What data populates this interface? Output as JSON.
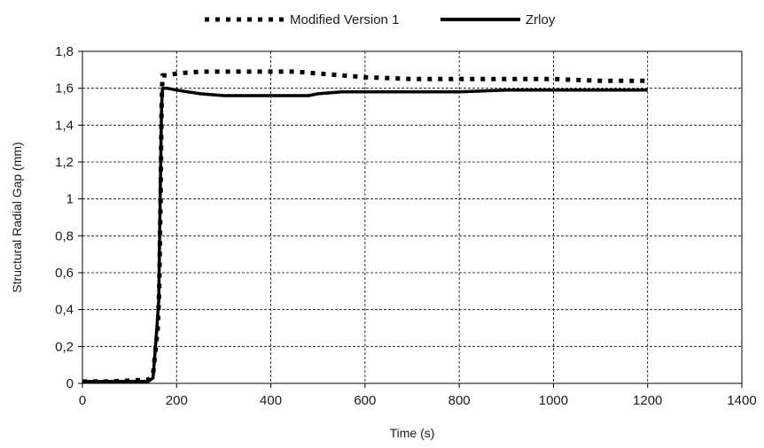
{
  "chart_data": {
    "type": "line",
    "title": "",
    "xlabel": "Time (s)",
    "ylabel": "Structural Radial  Gap (mm)",
    "xlim": [
      0,
      1400
    ],
    "ylim": [
      0,
      1.8
    ],
    "x_ticks": [
      0,
      200,
      400,
      600,
      800,
      1000,
      1200,
      1400
    ],
    "x_tick_labels": [
      "0",
      "200",
      "400",
      "600",
      "800",
      "1000",
      "1200",
      "1400"
    ],
    "y_ticks": [
      0,
      0.2,
      0.4,
      0.6,
      0.8,
      1.0,
      1.2,
      1.4,
      1.6,
      1.8
    ],
    "y_tick_labels": [
      "0",
      "0,2",
      "0,4",
      "0,6",
      "0,8",
      "1",
      "1,2",
      "1,4",
      "1,6",
      "1,8"
    ],
    "grid": true,
    "legend_position": "top-center",
    "series": [
      {
        "name": "Modified Version  1",
        "style": "dotted",
        "color": "#000000",
        "x": [
          0,
          50,
          100,
          140,
          150,
          160,
          163,
          166,
          168,
          170,
          180,
          200,
          250,
          300,
          400,
          450,
          500,
          550,
          600,
          700,
          800,
          900,
          1000,
          1100,
          1200
        ],
        "y": [
          0.01,
          0.01,
          0.015,
          0.02,
          0.05,
          0.3,
          0.5,
          1.0,
          1.5,
          1.67,
          1.67,
          1.68,
          1.69,
          1.69,
          1.69,
          1.69,
          1.68,
          1.67,
          1.66,
          1.65,
          1.65,
          1.65,
          1.65,
          1.64,
          1.64
        ]
      },
      {
        "name": "Zrloy",
        "style": "solid",
        "color": "#000000",
        "x": [
          0,
          50,
          100,
          140,
          150,
          158,
          162,
          165,
          168,
          170,
          180,
          200,
          250,
          300,
          400,
          480,
          500,
          550,
          600,
          700,
          800,
          900,
          1000,
          1100,
          1200
        ],
        "y": [
          0.01,
          0.01,
          0.01,
          0.01,
          0.03,
          0.3,
          0.45,
          1.0,
          1.5,
          1.6,
          1.6,
          1.59,
          1.57,
          1.56,
          1.56,
          1.56,
          1.57,
          1.58,
          1.58,
          1.58,
          1.58,
          1.59,
          1.59,
          1.59,
          1.59
        ]
      }
    ]
  }
}
